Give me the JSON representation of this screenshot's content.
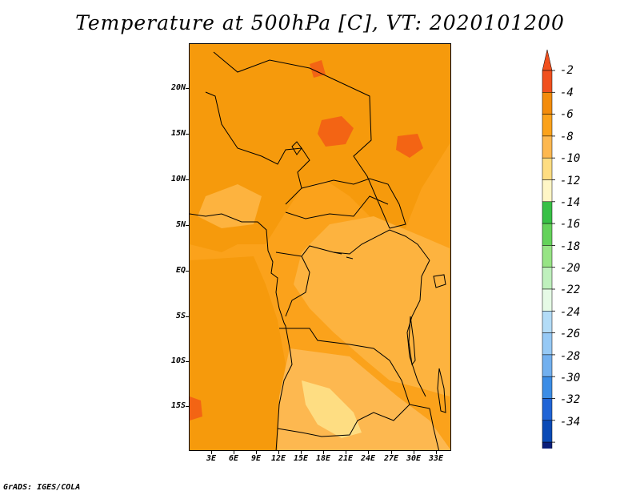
{
  "title": "Temperature at 500hPa [C], VT: 2020101200",
  "credit": "GrADS: IGES/COLA",
  "map": {
    "region": "Central Africa",
    "variable": "Temperature",
    "level": "500hPa",
    "units": "C",
    "valid_time": "2020101200",
    "lat_labels": [
      "20N",
      "15N",
      "10N",
      "5N",
      "EQ",
      "5S",
      "10S",
      "15S"
    ],
    "lon_labels": [
      "3E",
      "6E",
      "9E",
      "12E",
      "15E",
      "18E",
      "21E",
      "24E",
      "27E",
      "30E",
      "33E"
    ]
  },
  "legend": {
    "labels": [
      "-2",
      "-4",
      "-6",
      "-8",
      "-10",
      "-12",
      "-14",
      "-16",
      "-18",
      "-20",
      "-22",
      "-24",
      "-26",
      "-28",
      "-30",
      "-32",
      "-34"
    ],
    "colors": [
      "#f0501e",
      "#f38c0c",
      "#fba21b",
      "#fdb850",
      "#fedd82",
      "#fff6c6",
      "#38c046",
      "#64d25a",
      "#97e485",
      "#bff0bd",
      "#e6fae6",
      "#b3dcf7",
      "#96c9f5",
      "#72b0ef",
      "#3c8de6",
      "#2064d6",
      "#0a4ab6",
      "#0a1e7a"
    ],
    "top_color": "#f0501e",
    "bottom_color": "#e6e6fa"
  }
}
